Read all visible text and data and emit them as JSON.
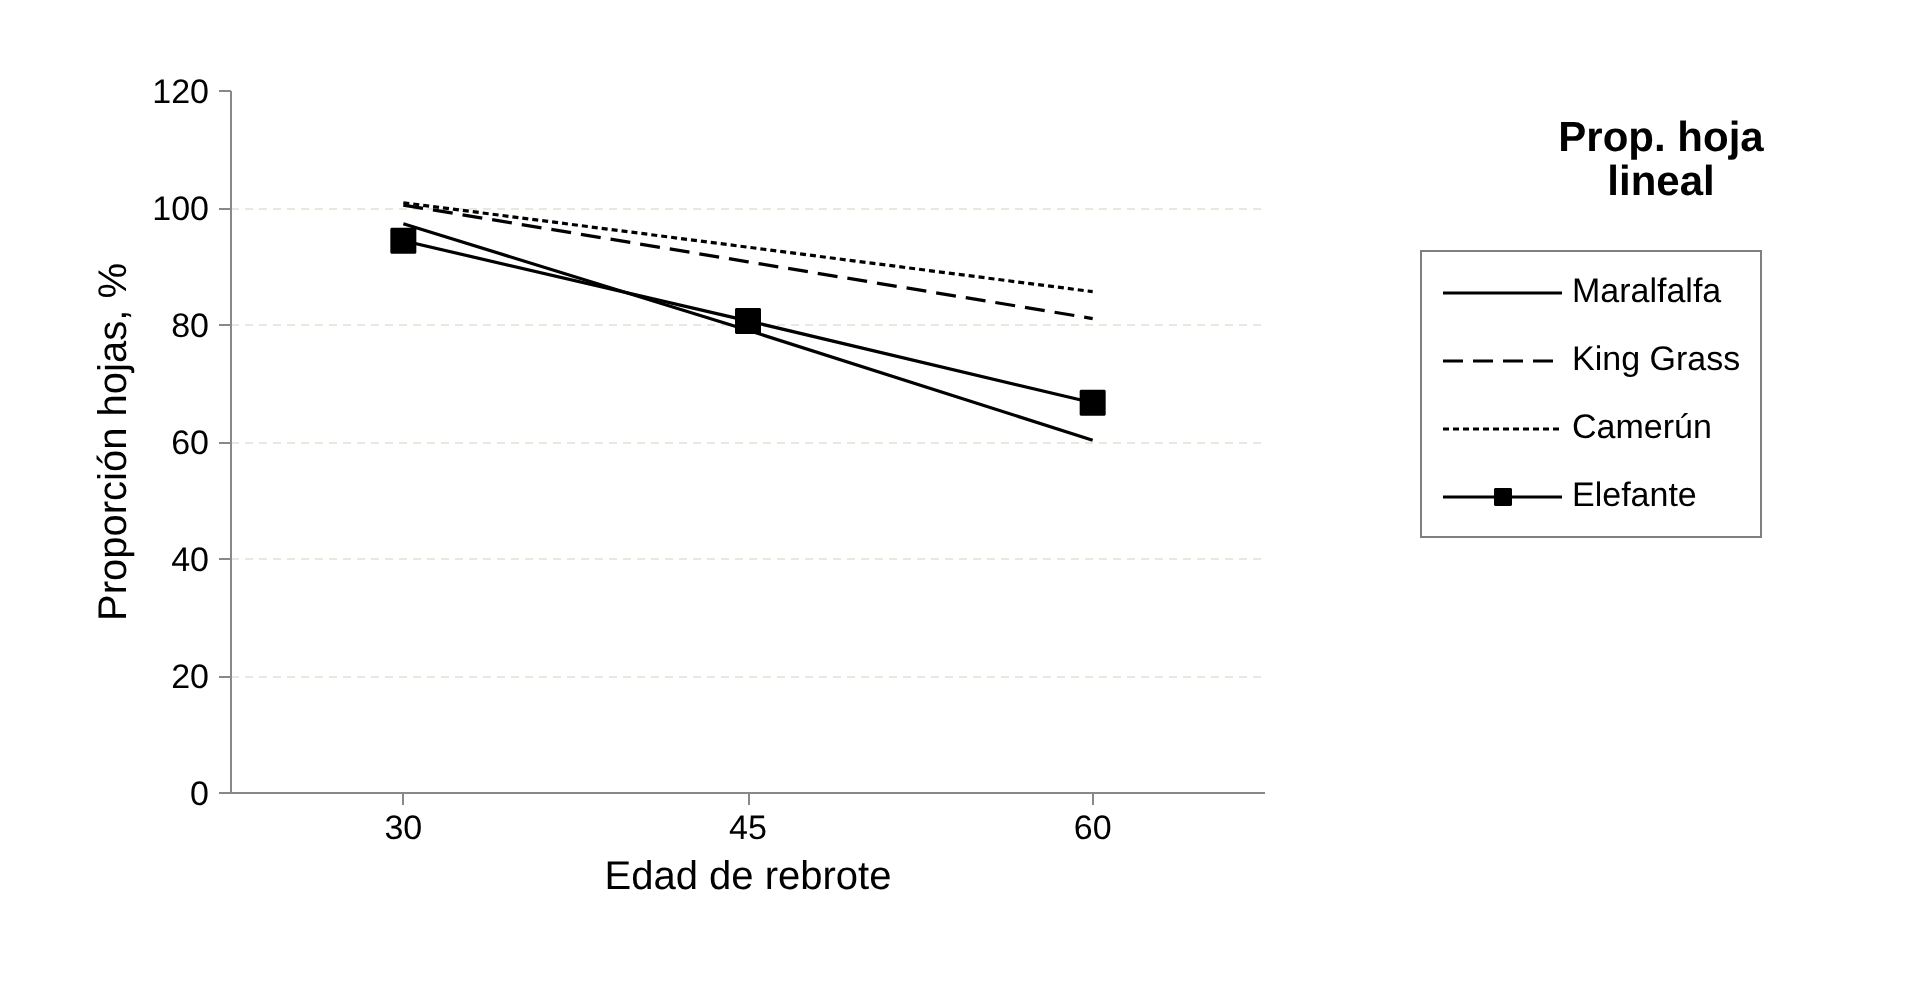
{
  "chart_data": {
    "type": "line",
    "title": "Prop. hoja lineal",
    "xlabel": "Edad de rebrote",
    "ylabel": "Proporción hojas, %",
    "categories": [
      "30",
      "45",
      "60"
    ],
    "ylim": [
      0,
      120
    ],
    "yticks": [
      0,
      20,
      40,
      60,
      80,
      100,
      120
    ],
    "grid": "y",
    "legend": "right",
    "marker": "none",
    "series": [
      {
        "name": "Maralfalfa",
        "color": "#000000",
        "line_style": "solid",
        "values": [
          97.3,
          79.1,
          60.3
        ]
      },
      {
        "name": "King Grass",
        "color": "#000000",
        "line_style": "dashed",
        "values": [
          100.5,
          90.8,
          81.1
        ]
      },
      {
        "name": "Camerún",
        "color": "#000000",
        "line_style": "dotted",
        "values": [
          100.9,
          93.3,
          85.7
        ]
      },
      {
        "name": "Elefante",
        "color": "#000000",
        "line_style": "solid",
        "marker": "square",
        "values": [
          94.4,
          80.7,
          66.7
        ]
      }
    ]
  }
}
